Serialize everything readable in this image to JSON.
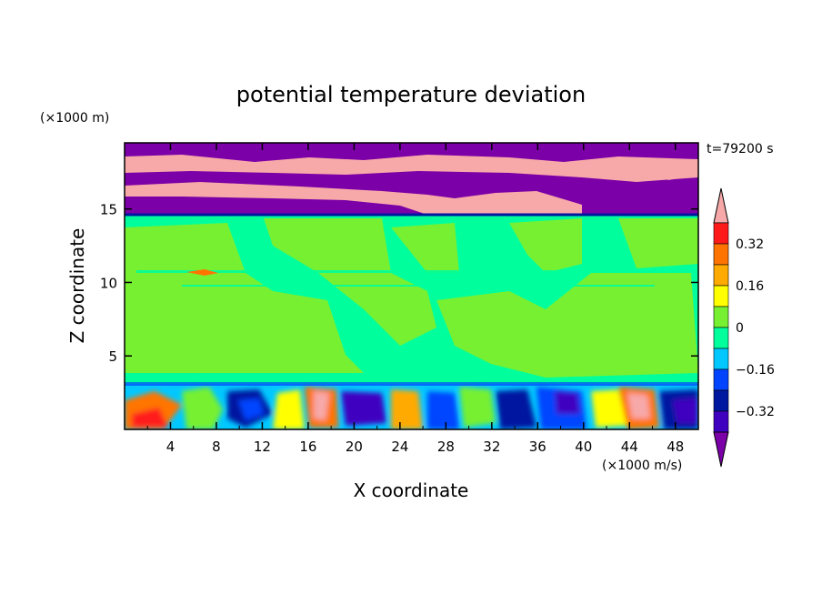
{
  "chart_data": {
    "type": "heatmap",
    "title": "potential temperature deviation",
    "xlabel": "X coordinate",
    "ylabel": "Z coordinate",
    "x_unit": "(×1000 m/s)",
    "y_unit": "(×1000 m)",
    "time_label": "t=79200 s",
    "xlim": [
      0,
      50
    ],
    "ylim": [
      0,
      19.5
    ],
    "x_ticks": [
      4,
      8,
      12,
      16,
      20,
      24,
      28,
      32,
      36,
      40,
      44,
      48
    ],
    "y_ticks": [
      5,
      10,
      15
    ],
    "colorbar": {
      "levels": [
        -0.48,
        -0.4,
        -0.32,
        -0.24,
        -0.16,
        -0.08,
        0,
        0.08,
        0.16,
        0.24,
        0.32,
        0.4
      ],
      "colors": [
        "#7b00a8",
        "#4000c0",
        "#0018a0",
        "#0044ff",
        "#00c8ff",
        "#00ff9c",
        "#77f032",
        "#ffff00",
        "#ffaa00",
        "#ff7400",
        "#ff1a1a",
        "#f7a8a8"
      ],
      "tick_labels": [
        "-0.32",
        "-0.16",
        "0",
        "0.16",
        "0.32"
      ],
      "tick_values": [
        -0.32,
        -0.16,
        0,
        0.16,
        0.32
      ]
    },
    "field_regions": [
      {
        "x": [
          0,
          50
        ],
        "z": [
          15,
          19.5
        ],
        "value": -0.44,
        "desc": "upper layer purple"
      },
      {
        "x": [
          0,
          50
        ],
        "z": [
          3.5,
          15
        ],
        "value": -0.02,
        "desc": "mid-level green"
      },
      {
        "x": [
          0,
          50
        ],
        "z": [
          0,
          3.5
        ],
        "value": "mixed",
        "desc": "boundary layer mixed"
      }
    ]
  }
}
